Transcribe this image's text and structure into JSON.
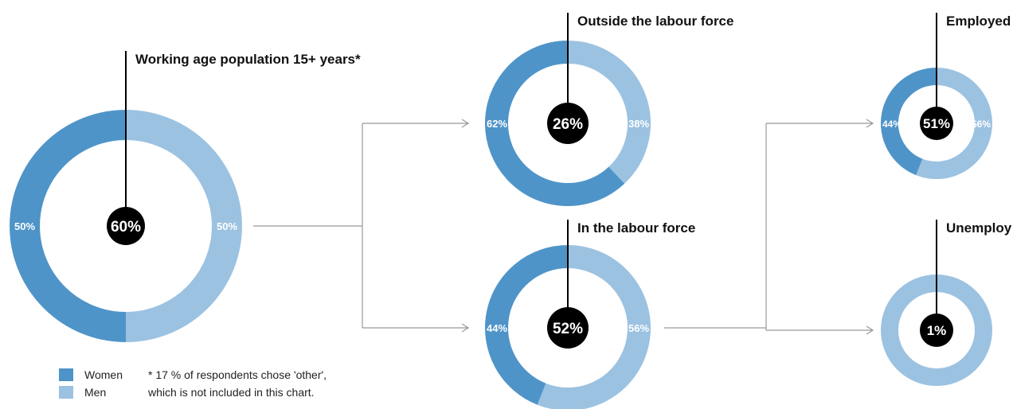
{
  "colors": {
    "women": "#4e94c8",
    "men": "#9cc2e1",
    "connector": "#999999",
    "center_fill": "#000000"
  },
  "nodes": [
    {
      "id": "working-age",
      "title": "Working age population 15+ years*",
      "center": "60%",
      "women": "50%",
      "men": "50%",
      "women_share": 0.5
    },
    {
      "id": "outside-labour-force",
      "title": "Outside the labour force",
      "center": "26%",
      "women": "62%",
      "men": "38%",
      "women_share": 0.62
    },
    {
      "id": "in-labour-force",
      "title": "In the labour force",
      "center": "52%",
      "women": "44%",
      "men": "56%",
      "women_share": 0.44
    },
    {
      "id": "employed",
      "title": "Employed",
      "center": "51%",
      "women": "44%",
      "men": "56%",
      "women_share": 0.44
    },
    {
      "id": "unemployed",
      "title": "Unemploy",
      "center": "1%",
      "women": "",
      "men": "",
      "women_share": 0
    }
  ],
  "legend": [
    {
      "key": "women",
      "label": "Women"
    },
    {
      "key": "men",
      "label": "Men"
    }
  ],
  "footnote": [
    "* 17 % of respondents chose 'other',",
    "which is not included in this chart."
  ]
}
